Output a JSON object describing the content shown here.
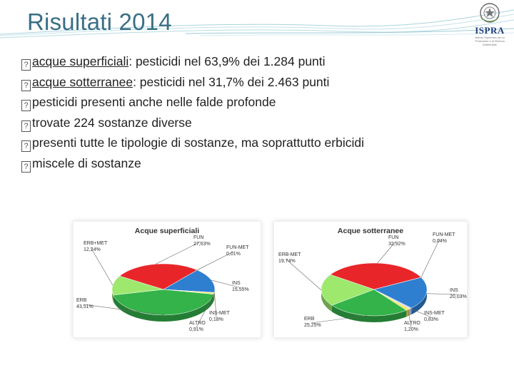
{
  "slide": {
    "title": "Risultati 2014",
    "logo": {
      "brand": "ISPRA",
      "subtitle": "Istituto Superiore per la Protezione e la Ricerca Ambientale"
    },
    "bullet_symbol": "?",
    "bullets": [
      {
        "lead": "acque superficiali",
        "rest": ": pesticidi nel 63,9% dei 1.284 punti"
      },
      {
        "lead": "acque sotterranee",
        "rest": ": pesticidi nel 31,7% dei 2.463 punti"
      },
      {
        "lead": "",
        "rest": "pesticidi presenti anche nelle falde profonde"
      },
      {
        "lead": "",
        "rest": "trovate 224 sostanze diverse"
      },
      {
        "lead": "",
        "rest": "presenti tutte le tipologie di sostanze, ma soprattutto erbicidi"
      },
      {
        "lead": "",
        "rest": "miscele di sostanze"
      }
    ]
  },
  "colors": {
    "title": "#3a6f84",
    "FUN": "#e8262a",
    "FUN-MET": "#f07b7b",
    "INS": "#2f7fd0",
    "INS-MET": "#c9d6ef",
    "ALTRO": "#f2e85a",
    "ERB": "#34b34a",
    "ERB+MET": "#9ee86e"
  },
  "chart_data": [
    {
      "type": "pie",
      "title": "Acque superficiali",
      "slices": [
        {
          "label": "FUN",
          "value": 27.63,
          "display": "27,63%"
        },
        {
          "label": "FUN-MET",
          "value": 0.01,
          "display": "0,01%"
        },
        {
          "label": "INS",
          "value": 15.55,
          "display": "15,55%"
        },
        {
          "label": "INS-MET",
          "value": 0.18,
          "display": "0,18%"
        },
        {
          "label": "ALTRO",
          "value": 0.91,
          "display": "0,91%"
        },
        {
          "label": "ERB",
          "value": 43.51,
          "display": "43,51%"
        },
        {
          "label": "ERB+MET",
          "value": 12.24,
          "display": "12,24%"
        }
      ]
    },
    {
      "type": "pie",
      "title": "Acque sotterranee",
      "slices": [
        {
          "label": "FUN",
          "value": 32.92,
          "display": "32,92%"
        },
        {
          "label": "FUN-MET",
          "value": 0.04,
          "display": "0,04%"
        },
        {
          "label": "INS",
          "value": 20.03,
          "display": "20,03%"
        },
        {
          "label": "INS-MET",
          "value": 0.83,
          "display": "0,83%"
        },
        {
          "label": "ALTRO",
          "value": 1.2,
          "display": "1,20%"
        },
        {
          "label": "ERB",
          "value": 25.25,
          "display": "25,25%"
        },
        {
          "label": "ERB-MET",
          "value": 19.74,
          "display": "19,74%"
        }
      ]
    }
  ]
}
